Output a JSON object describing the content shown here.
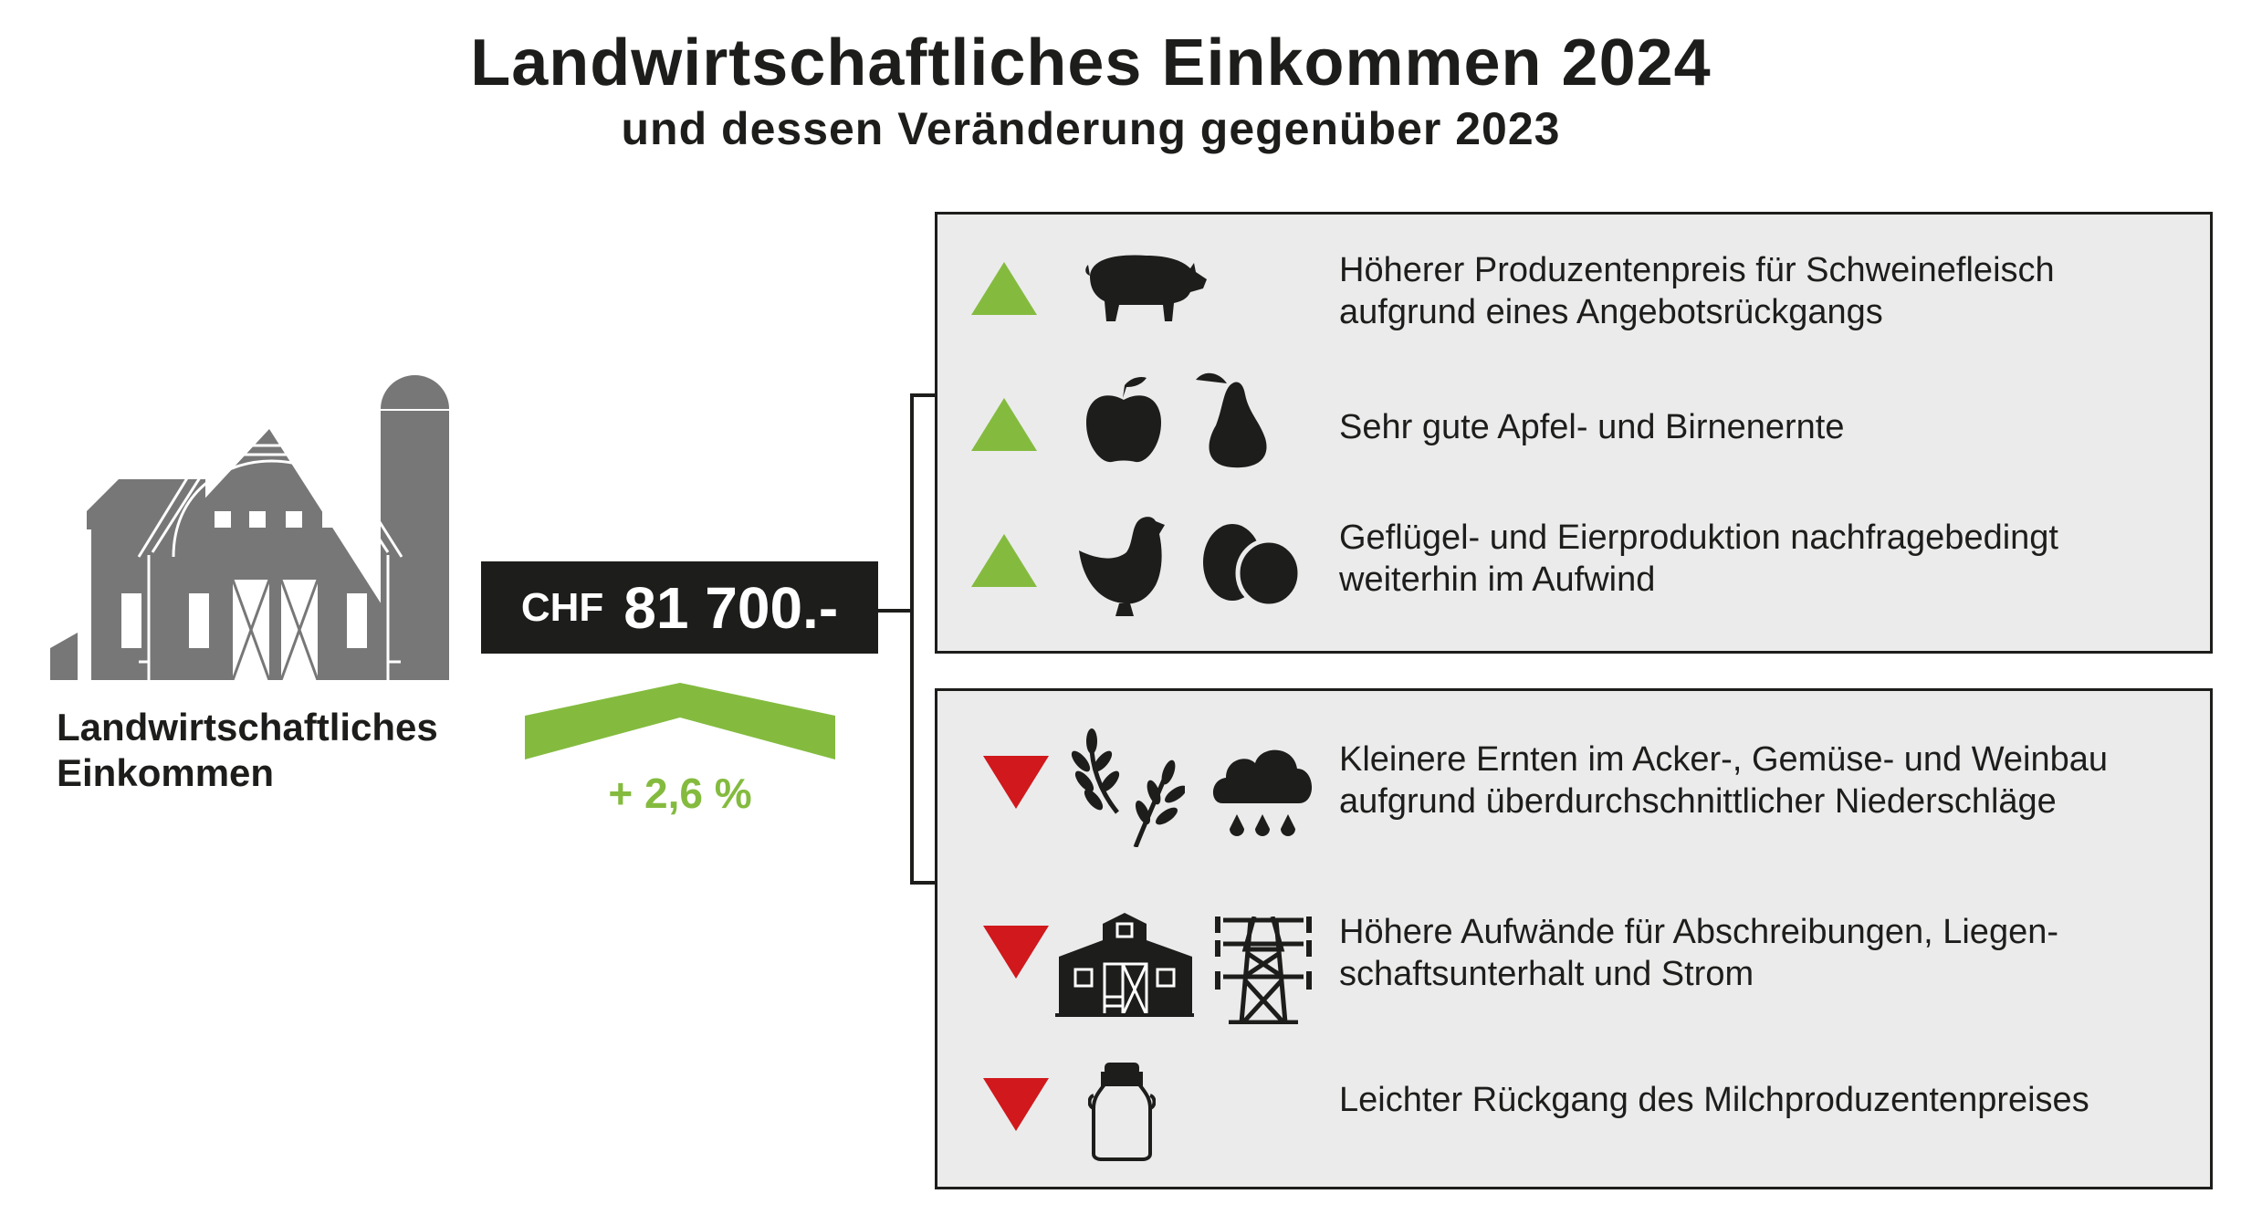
{
  "title": "Landwirtschaftliches Einkommen 2024",
  "subtitle": "und dessen Veränderung gegenüber 2023",
  "income": {
    "label_line1": "Landwirtschaftliches",
    "label_line2": "Einkommen",
    "currency": "CHF",
    "amount": "81 700.-",
    "change": "+ 2,6 %"
  },
  "colors": {
    "up": "#84bb3f",
    "down": "#d0181d",
    "box": "#ebebeb",
    "dark": "#1d1d1b",
    "barn": "#777777"
  },
  "positive": [
    {
      "line1": "Höherer Produzentenpreis für Schweinefleisch",
      "line2": "aufgrund eines Angebotsrückgangs",
      "icons": [
        "pig-icon"
      ]
    },
    {
      "line1": "Sehr gute Apfel- und Birnenernte",
      "icons": [
        "apple-icon",
        "pear-icon"
      ]
    },
    {
      "line1": "Geflügel- und Eierproduktion nachfragebedingt",
      "line2": "weiterhin im Aufwind",
      "icons": [
        "chicken-icon",
        "eggs-icon"
      ]
    }
  ],
  "negative": [
    {
      "line1": "Kleinere Ernten im Acker-, Gemüse- und Weinbau",
      "line2": "aufgrund überdurchschnittlicher Niederschläge",
      "icons": [
        "wheat-icon",
        "rain-cloud-icon"
      ]
    },
    {
      "line1": "Höhere Aufwände für Abschreibungen, Liegen-",
      "line2": "schaftsunterhalt und Strom",
      "icons": [
        "barn-icon",
        "power-pylon-icon"
      ]
    },
    {
      "line1": "Leichter Rückgang des Milchproduzentenpreises",
      "icons": [
        "milk-can-icon"
      ]
    }
  ]
}
